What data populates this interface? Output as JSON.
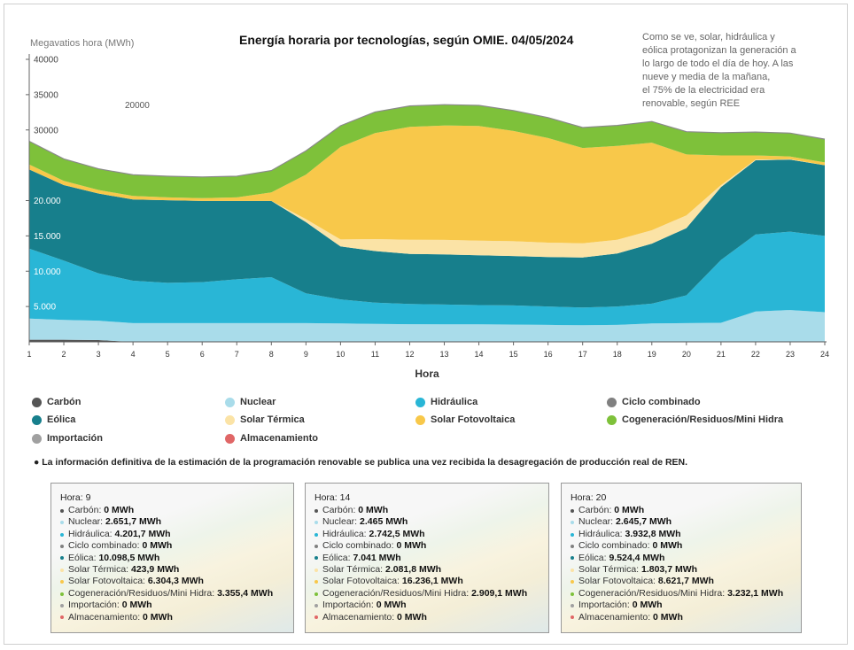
{
  "title": "Energía horaria por tecnologías, según OMIE. 04/05/2024",
  "note_lines": [
    "Como se ve, solar, hidráulica y",
    "eólica protagonizan la generación a",
    "lo largo de todo el día de hoy. A las",
    "nueve y media de la mañana,",
    "el 75% de la electricidad era",
    "renovable, según REE"
  ],
  "stray_label": "20000",
  "footnote": "● La información definitiva de la estimación de la programación renovable se publica una vez recibida la desagregación de producción real de REN.",
  "legend": [
    {
      "name": "Carbón",
      "color": "#555555"
    },
    {
      "name": "Nuclear",
      "color": "#a9dcea"
    },
    {
      "name": "Hidráulica",
      "color": "#29b6d6"
    },
    {
      "name": "Ciclo combinado",
      "color": "#808080"
    },
    {
      "name": "Eólica",
      "color": "#177f8c"
    },
    {
      "name": "Solar Térmica",
      "color": "#fbe3a6"
    },
    {
      "name": "Solar Fotovoltaica",
      "color": "#f8c84a"
    },
    {
      "name": "Cogeneración/Residuos/Mini Hidra",
      "color": "#7ec13a"
    },
    {
      "name": "Importación",
      "color": "#a0a0a0"
    },
    {
      "name": "Almacenamiento",
      "color": "#e06666"
    }
  ],
  "tooltips": [
    {
      "hour_label": "Hora:",
      "hour": "9",
      "rows": [
        {
          "label": "Carbón:",
          "value": "0 MWh",
          "color": "#555555"
        },
        {
          "label": "Nuclear:",
          "value": "2.651,7 MWh",
          "color": "#a9dcea"
        },
        {
          "label": "Hidráulica:",
          "value": "4.201,7 MWh",
          "color": "#29b6d6"
        },
        {
          "label": "Ciclo combinado:",
          "value": "0 MWh",
          "color": "#808080"
        },
        {
          "label": "Eólica:",
          "value": "10.098,5 MWh",
          "color": "#177f8c"
        },
        {
          "label": "Solar Térmica:",
          "value": "423,9 MWh",
          "color": "#fbe3a6"
        },
        {
          "label": "Solar Fotovoltaica:",
          "value": "6.304,3 MWh",
          "color": "#f8c84a"
        },
        {
          "label": "Cogeneración/Residuos/Mini Hidra:",
          "value": "3.355,4 MWh",
          "color": "#7ec13a"
        },
        {
          "label": "Importación:",
          "value": "0 MWh",
          "color": "#a0a0a0"
        },
        {
          "label": "Almacenamiento:",
          "value": "0 MWh",
          "color": "#e06666"
        }
      ]
    },
    {
      "hour_label": "Hora:",
      "hour": "14",
      "rows": [
        {
          "label": "Carbón:",
          "value": "0 MWh",
          "color": "#555555"
        },
        {
          "label": "Nuclear:",
          "value": "2.465 MWh",
          "color": "#a9dcea"
        },
        {
          "label": "Hidráulica:",
          "value": "2.742,5 MWh",
          "color": "#29b6d6"
        },
        {
          "label": "Ciclo combinado:",
          "value": "0 MWh",
          "color": "#808080"
        },
        {
          "label": "Eólica:",
          "value": "7.041 MWh",
          "color": "#177f8c"
        },
        {
          "label": "Solar Térmica:",
          "value": "2.081,8 MWh",
          "color": "#fbe3a6"
        },
        {
          "label": "Solar Fotovoltaica:",
          "value": "16.236,1 MWh",
          "color": "#f8c84a"
        },
        {
          "label": "Cogeneración/Residuos/Mini Hidra:",
          "value": "2.909,1 MWh",
          "color": "#7ec13a"
        },
        {
          "label": "Importación:",
          "value": "0 MWh",
          "color": "#a0a0a0"
        },
        {
          "label": "Almacenamiento:",
          "value": "0 MWh",
          "color": "#e06666"
        }
      ]
    },
    {
      "hour_label": "Hora:",
      "hour": "20",
      "rows": [
        {
          "label": "Carbón:",
          "value": "0 MWh",
          "color": "#555555"
        },
        {
          "label": "Nuclear:",
          "value": "2.645,7 MWh",
          "color": "#a9dcea"
        },
        {
          "label": "Hidráulica:",
          "value": "3.932,8 MWh",
          "color": "#29b6d6"
        },
        {
          "label": "Ciclo combinado:",
          "value": "0 MWh",
          "color": "#808080"
        },
        {
          "label": "Eólica:",
          "value": "9.524,4 MWh",
          "color": "#177f8c"
        },
        {
          "label": "Solar Térmica:",
          "value": "1.803,7 MWh",
          "color": "#fbe3a6"
        },
        {
          "label": "Solar Fotovoltaica:",
          "value": "8.621,7 MWh",
          "color": "#f8c84a"
        },
        {
          "label": "Cogeneración/Residuos/Mini Hidra:",
          "value": "3.232,1 MWh",
          "color": "#7ec13a"
        },
        {
          "label": "Importación:",
          "value": "0 MWh",
          "color": "#a0a0a0"
        },
        {
          "label": "Almacenamiento:",
          "value": "0 MWh",
          "color": "#e06666"
        }
      ]
    }
  ],
  "chart_data": {
    "type": "area",
    "stacked": true,
    "title": "Energía horaria por tecnologías, según OMIE. 04/05/2024",
    "xlabel": "Hora",
    "ylabel": "Megavatios hora (MWh)",
    "x": [
      1,
      2,
      3,
      4,
      5,
      6,
      7,
      8,
      9,
      10,
      11,
      12,
      13,
      14,
      15,
      16,
      17,
      18,
      19,
      20,
      21,
      22,
      23,
      24
    ],
    "ylim": [
      0,
      40000
    ],
    "y_ticks": [
      {
        "value": 5000,
        "label": "5.000"
      },
      {
        "value": 10000,
        "label": "10.000"
      },
      {
        "value": 15000,
        "label": "15.000"
      },
      {
        "value": 20000,
        "label": "20.000"
      },
      {
        "value": 30000,
        "label": "30000"
      },
      {
        "value": 35000,
        "label": "35000"
      },
      {
        "value": 40000,
        "label": "40000"
      }
    ],
    "series": [
      {
        "name": "Carbón",
        "color": "#555555",
        "values": [
          300,
          300,
          250,
          0,
          0,
          0,
          0,
          0,
          0,
          0,
          0,
          0,
          0,
          0,
          0,
          0,
          0,
          0,
          0,
          0,
          0,
          0,
          0,
          0
        ]
      },
      {
        "name": "Nuclear",
        "color": "#a9dcea",
        "values": [
          3000,
          2800,
          2750,
          2650,
          2650,
          2650,
          2650,
          2650,
          2651.7,
          2600,
          2550,
          2500,
          2480,
          2465,
          2450,
          2400,
          2350,
          2400,
          2600,
          2645.7,
          2700,
          4300,
          4500,
          4200
        ]
      },
      {
        "name": "Hidráulica",
        "color": "#29b6d6",
        "values": [
          9900,
          8400,
          6700,
          6000,
          5700,
          5800,
          6200,
          6500,
          4201.7,
          3400,
          3000,
          2850,
          2800,
          2742.5,
          2700,
          2600,
          2500,
          2600,
          2800,
          3932.8,
          8900,
          10900,
          11100,
          10800
        ]
      },
      {
        "name": "Ciclo combinado",
        "color": "#808080",
        "values": [
          0,
          0,
          0,
          0,
          0,
          0,
          0,
          0,
          0,
          0,
          0,
          0,
          0,
          0,
          0,
          0,
          0,
          0,
          0,
          0,
          0,
          0,
          0,
          0
        ]
      },
      {
        "name": "Eólica",
        "color": "#177f8c",
        "values": [
          11200,
          10700,
          11300,
          11500,
          11700,
          11500,
          11100,
          10800,
          10098.5,
          7500,
          7300,
          7100,
          7100,
          7041,
          7000,
          7000,
          7100,
          7500,
          8500,
          9524.4,
          10300,
          10500,
          10200,
          10000
        ]
      },
      {
        "name": "Solar Térmica",
        "color": "#fbe3a6",
        "values": [
          0,
          0,
          0,
          0,
          0,
          0,
          0,
          0,
          423.9,
          1000,
          1700,
          2000,
          2050,
          2081.8,
          2100,
          2050,
          2000,
          1950,
          1900,
          1803.7,
          300,
          100,
          50,
          0
        ]
      },
      {
        "name": "Solar Fotovoltaica",
        "color": "#f8c84a",
        "values": [
          700,
          600,
          500,
          500,
          400,
          400,
          500,
          1200,
          6304.3,
          13100,
          15000,
          16000,
          16200,
          16236.1,
          15600,
          14800,
          13500,
          13300,
          12400,
          8621.7,
          4200,
          600,
          400,
          400
        ]
      },
      {
        "name": "Cogeneración/Residuos/Mini Hidra",
        "color": "#7ec13a",
        "values": [
          3300,
          3100,
          3000,
          3000,
          3000,
          3000,
          3000,
          3100,
          3355.4,
          3000,
          3000,
          2950,
          2950,
          2909.1,
          2900,
          2900,
          2900,
          2900,
          3000,
          3232.1,
          3200,
          3300,
          3300,
          3300
        ]
      },
      {
        "name": "Importación",
        "color": "#a0a0a0",
        "values": [
          0,
          0,
          0,
          0,
          0,
          0,
          0,
          0,
          0,
          0,
          0,
          0,
          0,
          0,
          0,
          0,
          0,
          0,
          0,
          0,
          0,
          0,
          0,
          0
        ]
      },
      {
        "name": "Almacenamiento",
        "color": "#e06666",
        "values": [
          0,
          0,
          0,
          0,
          0,
          0,
          0,
          0,
          0,
          0,
          0,
          0,
          0,
          0,
          0,
          0,
          0,
          0,
          0,
          0,
          0,
          0,
          0,
          0
        ]
      }
    ]
  }
}
